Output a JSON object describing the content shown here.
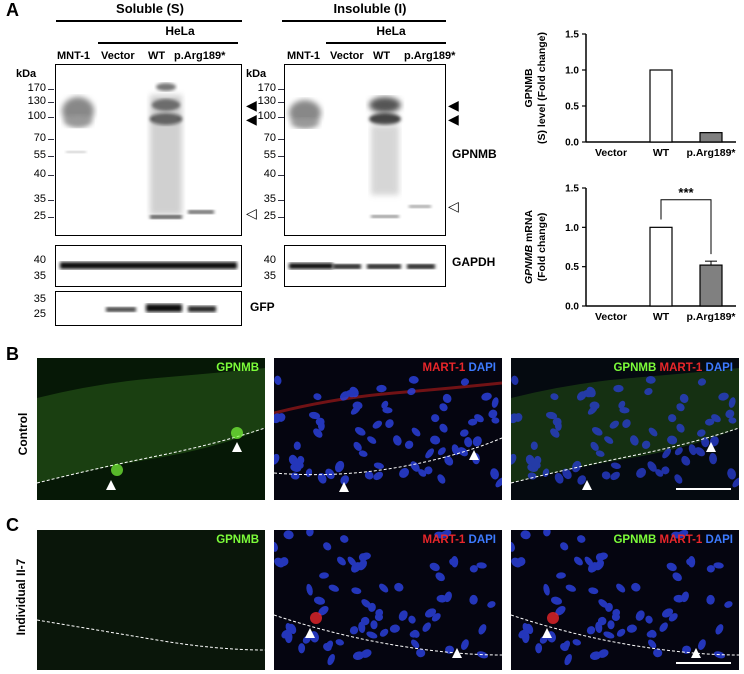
{
  "panel_a": {
    "label": "A",
    "soluble_header": "Soluble (S)",
    "insoluble_header": "Insoluble (I)",
    "hela_label": "HeLa",
    "lanes": [
      "MNT-1",
      "Vector",
      "WT",
      "p.Arg189*"
    ],
    "kda_label": "kDa",
    "mw_markers_main": [
      "170",
      "130",
      "100",
      "70",
      "55",
      "40",
      "35",
      "25"
    ],
    "mw_markers_gapdh": [
      "40",
      "35"
    ],
    "mw_markers_gfp": [
      "35",
      "25"
    ],
    "gpnmb_label": "GPNMB",
    "gapdh_label": "GAPDH",
    "gfp_label": "GFP",
    "filled_arrow": "◀",
    "open_arrow": "◁"
  },
  "chart_data": [
    {
      "type": "bar",
      "categories": [
        "Vector",
        "WT",
        "p.Arg189*"
      ],
      "values": [
        0.0,
        1.0,
        0.13
      ],
      "errors": [
        0,
        0,
        0
      ],
      "ylabel": "GPNMB (S) level (Fold change)",
      "ylim": [
        0,
        1.5
      ],
      "yticks": [
        "0.0",
        "0.5",
        "1.0",
        "1.5"
      ],
      "bar_colors": [
        "#ffffff",
        "#ffffff",
        "#808080"
      ]
    },
    {
      "type": "bar",
      "categories": [
        "Vector",
        "WT",
        "p.Arg189*"
      ],
      "values": [
        0.0,
        1.0,
        0.52
      ],
      "errors": [
        0,
        0,
        0.05
      ],
      "ylabel_italic": "GPNMB",
      "ylabel": " mRNA (Fold change)",
      "ylim": [
        0,
        1.5
      ],
      "yticks": [
        "0.0",
        "0.5",
        "1.0",
        "1.5"
      ],
      "bar_colors": [
        "#ffffff",
        "#ffffff",
        "#808080"
      ],
      "significance": "***"
    }
  ],
  "panel_b": {
    "label": "B",
    "row_label": "Control",
    "cap1": "GPNMB",
    "cap2_red": "MART-1",
    "cap2_blue": "DAPI",
    "cap3_green": "GPNMB",
    "cap3_red": "MART-1",
    "cap3_blue": "DAPI"
  },
  "panel_c": {
    "label": "C",
    "row_label": "Individual II-7",
    "cap1": "GPNMB",
    "cap2_red": "MART-1",
    "cap2_blue": "DAPI",
    "cap3_green": "GPNMB",
    "cap3_red": "MART-1",
    "cap3_blue": "DAPI"
  },
  "colors": {
    "green": "#7CFC3A",
    "red": "#E8262A",
    "blue": "#3D7BFF"
  }
}
